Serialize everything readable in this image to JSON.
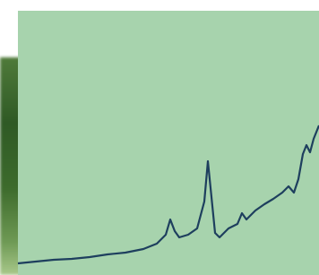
{
  "chart_data": {
    "type": "line",
    "color": "#1e3f5e",
    "x": [
      20,
      40,
      60,
      80,
      100,
      120,
      140,
      160,
      175,
      185,
      190,
      195,
      200,
      210,
      220,
      228,
      232,
      236,
      240,
      245,
      255,
      265,
      270,
      275,
      285,
      295,
      305,
      315,
      322,
      328,
      333,
      338,
      342,
      346,
      350,
      356
    ],
    "values": [
      13,
      15,
      17,
      18,
      20,
      23,
      25,
      29,
      35,
      45,
      62,
      49,
      42,
      45,
      52,
      82,
      127,
      87,
      47,
      42,
      52,
      57,
      69,
      62,
      72,
      79,
      85,
      92,
      99,
      92,
      107,
      135,
      145,
      137,
      152,
      167
    ]
  }
}
